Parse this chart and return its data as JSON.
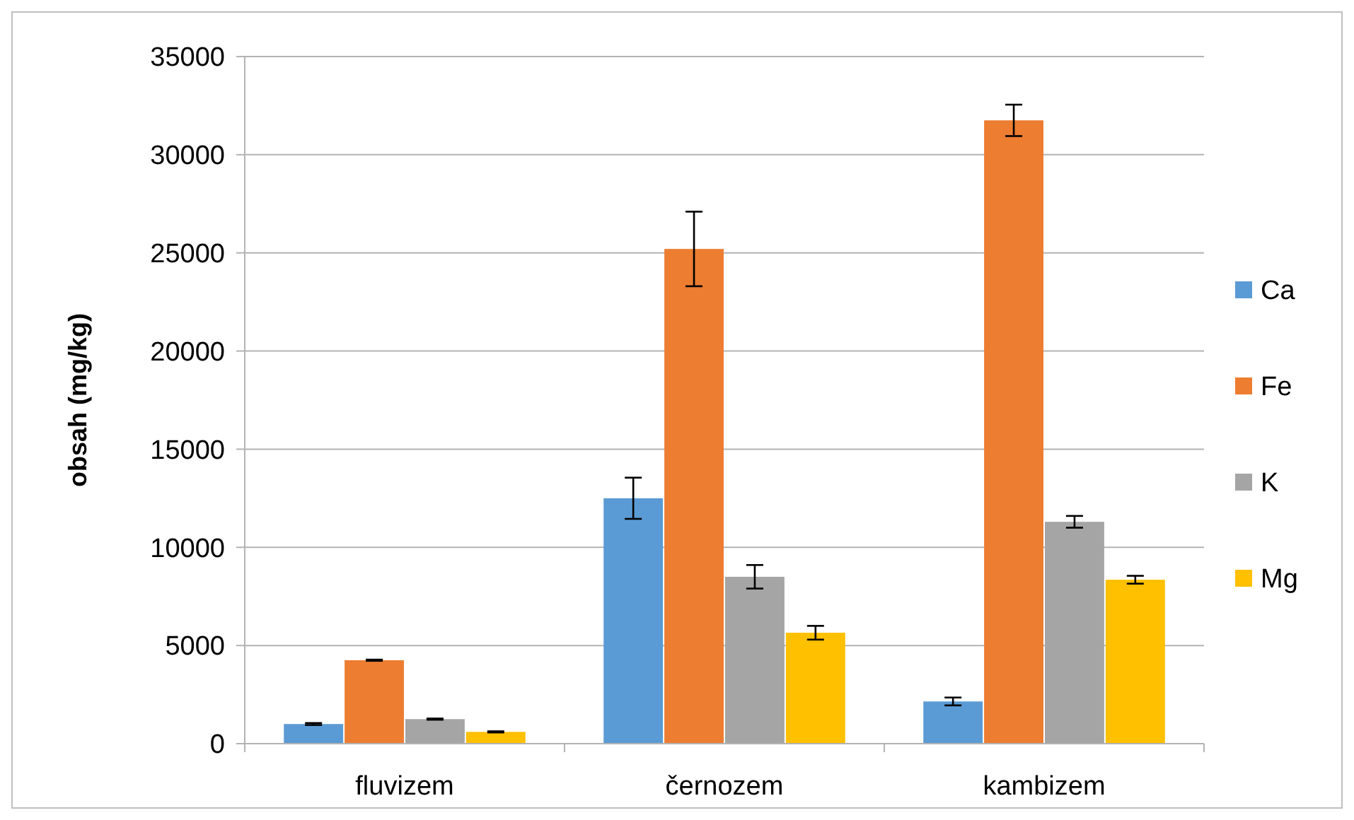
{
  "chart_data": {
    "type": "bar",
    "ylabel": "obsah (mg/kg)",
    "categories": [
      "fluvizem",
      "černozem",
      "kambizem"
    ],
    "series": [
      {
        "name": "Ca",
        "color": "#5b9bd5",
        "values": [
          1000,
          12500,
          2150
        ],
        "errors": [
          50,
          1050,
          200
        ]
      },
      {
        "name": "Fe",
        "color": "#ed7d31",
        "values": [
          4250,
          25200,
          31750
        ],
        "errors": [
          30,
          1900,
          800
        ]
      },
      {
        "name": "K",
        "color": "#a5a5a5",
        "values": [
          1250,
          8500,
          11300
        ],
        "errors": [
          30,
          600,
          300
        ]
      },
      {
        "name": "Mg",
        "color": "#ffc000",
        "values": [
          600,
          5650,
          8350
        ],
        "errors": [
          30,
          350,
          200
        ]
      }
    ],
    "ylim": [
      0,
      35000
    ],
    "yticks": [
      0,
      5000,
      10000,
      15000,
      20000,
      25000,
      30000,
      35000
    ],
    "grid": "y",
    "legend": "right"
  }
}
